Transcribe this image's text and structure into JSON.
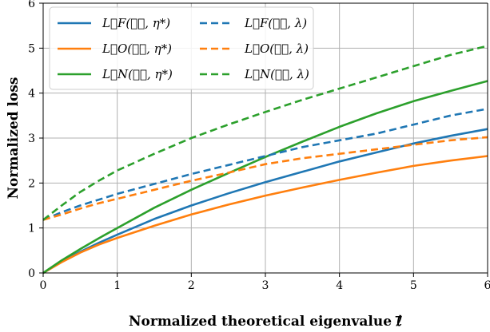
{
  "chart_data": {
    "type": "line",
    "xlabel": "Normalized theoretical eigenvalue ℓ⃗",
    "ylabel": "Normalized loss",
    "xlim": [
      0,
      6
    ],
    "ylim": [
      0,
      6
    ],
    "xticks": [
      "0",
      "1",
      "2",
      "3",
      "4",
      "5",
      "6"
    ],
    "yticks": [
      "0",
      "1",
      "2",
      "3",
      "4",
      "5",
      "6"
    ],
    "grid": true,
    "legend": {
      "placement": "top-left",
      "columns": 2
    },
    "series": [
      {
        "name": "L⃗F(ℓ⃗, η*)",
        "color": "#1f77b4",
        "style": "solid",
        "x": [
          0,
          0.25,
          0.5,
          0.75,
          1,
          1.5,
          2,
          2.5,
          3,
          3.5,
          4,
          4.5,
          5,
          5.5,
          6
        ],
        "y": [
          0,
          0.25,
          0.47,
          0.67,
          0.85,
          1.2,
          1.5,
          1.77,
          2.02,
          2.25,
          2.48,
          2.68,
          2.88,
          3.05,
          3.2
        ]
      },
      {
        "name": "L⃗O(ℓ⃗, η*)",
        "color": "#ff7f0e",
        "style": "solid",
        "x": [
          0,
          0.25,
          0.5,
          0.75,
          1,
          1.5,
          2,
          2.5,
          3,
          3.5,
          4,
          4.5,
          5,
          5.5,
          6
        ],
        "y": [
          0,
          0.24,
          0.45,
          0.63,
          0.78,
          1.05,
          1.3,
          1.52,
          1.72,
          1.9,
          2.07,
          2.23,
          2.38,
          2.5,
          2.6
        ]
      },
      {
        "name": "L⃗N(ℓ⃗, η*)",
        "color": "#2ca02c",
        "style": "solid",
        "x": [
          0,
          0.25,
          0.5,
          0.75,
          1,
          1.5,
          2,
          2.5,
          3,
          3.5,
          4,
          4.5,
          5,
          5.5,
          6
        ],
        "y": [
          0,
          0.28,
          0.53,
          0.77,
          1.0,
          1.45,
          1.85,
          2.22,
          2.58,
          2.92,
          3.25,
          3.55,
          3.82,
          4.05,
          4.27
        ]
      },
      {
        "name": "L⃗F(ℓ⃗, λ)",
        "color": "#1f77b4",
        "style": "dashed",
        "x": [
          0,
          0.25,
          0.5,
          0.75,
          1,
          1.5,
          2,
          2.5,
          3,
          3.5,
          4,
          4.5,
          5,
          5.5,
          6
        ],
        "y": [
          1.18,
          1.35,
          1.5,
          1.63,
          1.76,
          1.98,
          2.2,
          2.4,
          2.6,
          2.8,
          2.95,
          3.1,
          3.3,
          3.5,
          3.65
        ]
      },
      {
        "name": "L⃗O(ℓ⃗, λ)",
        "color": "#ff7f0e",
        "style": "dashed",
        "x": [
          0,
          0.25,
          0.5,
          0.75,
          1,
          1.5,
          2,
          2.5,
          3,
          3.5,
          4,
          4.5,
          5,
          5.5,
          6
        ],
        "y": [
          1.18,
          1.3,
          1.43,
          1.55,
          1.65,
          1.85,
          2.05,
          2.23,
          2.42,
          2.55,
          2.65,
          2.75,
          2.85,
          2.95,
          3.02
        ]
      },
      {
        "name": "L⃗N(ℓ⃗, λ)",
        "color": "#2ca02c",
        "style": "dashed",
        "x": [
          0,
          0.25,
          0.5,
          0.75,
          1,
          1.5,
          2,
          2.5,
          3,
          3.5,
          4,
          4.5,
          5,
          5.5,
          6
        ],
        "y": [
          1.18,
          1.5,
          1.8,
          2.05,
          2.28,
          2.65,
          3.0,
          3.3,
          3.58,
          3.85,
          4.1,
          4.35,
          4.6,
          4.85,
          5.05
        ]
      }
    ]
  }
}
